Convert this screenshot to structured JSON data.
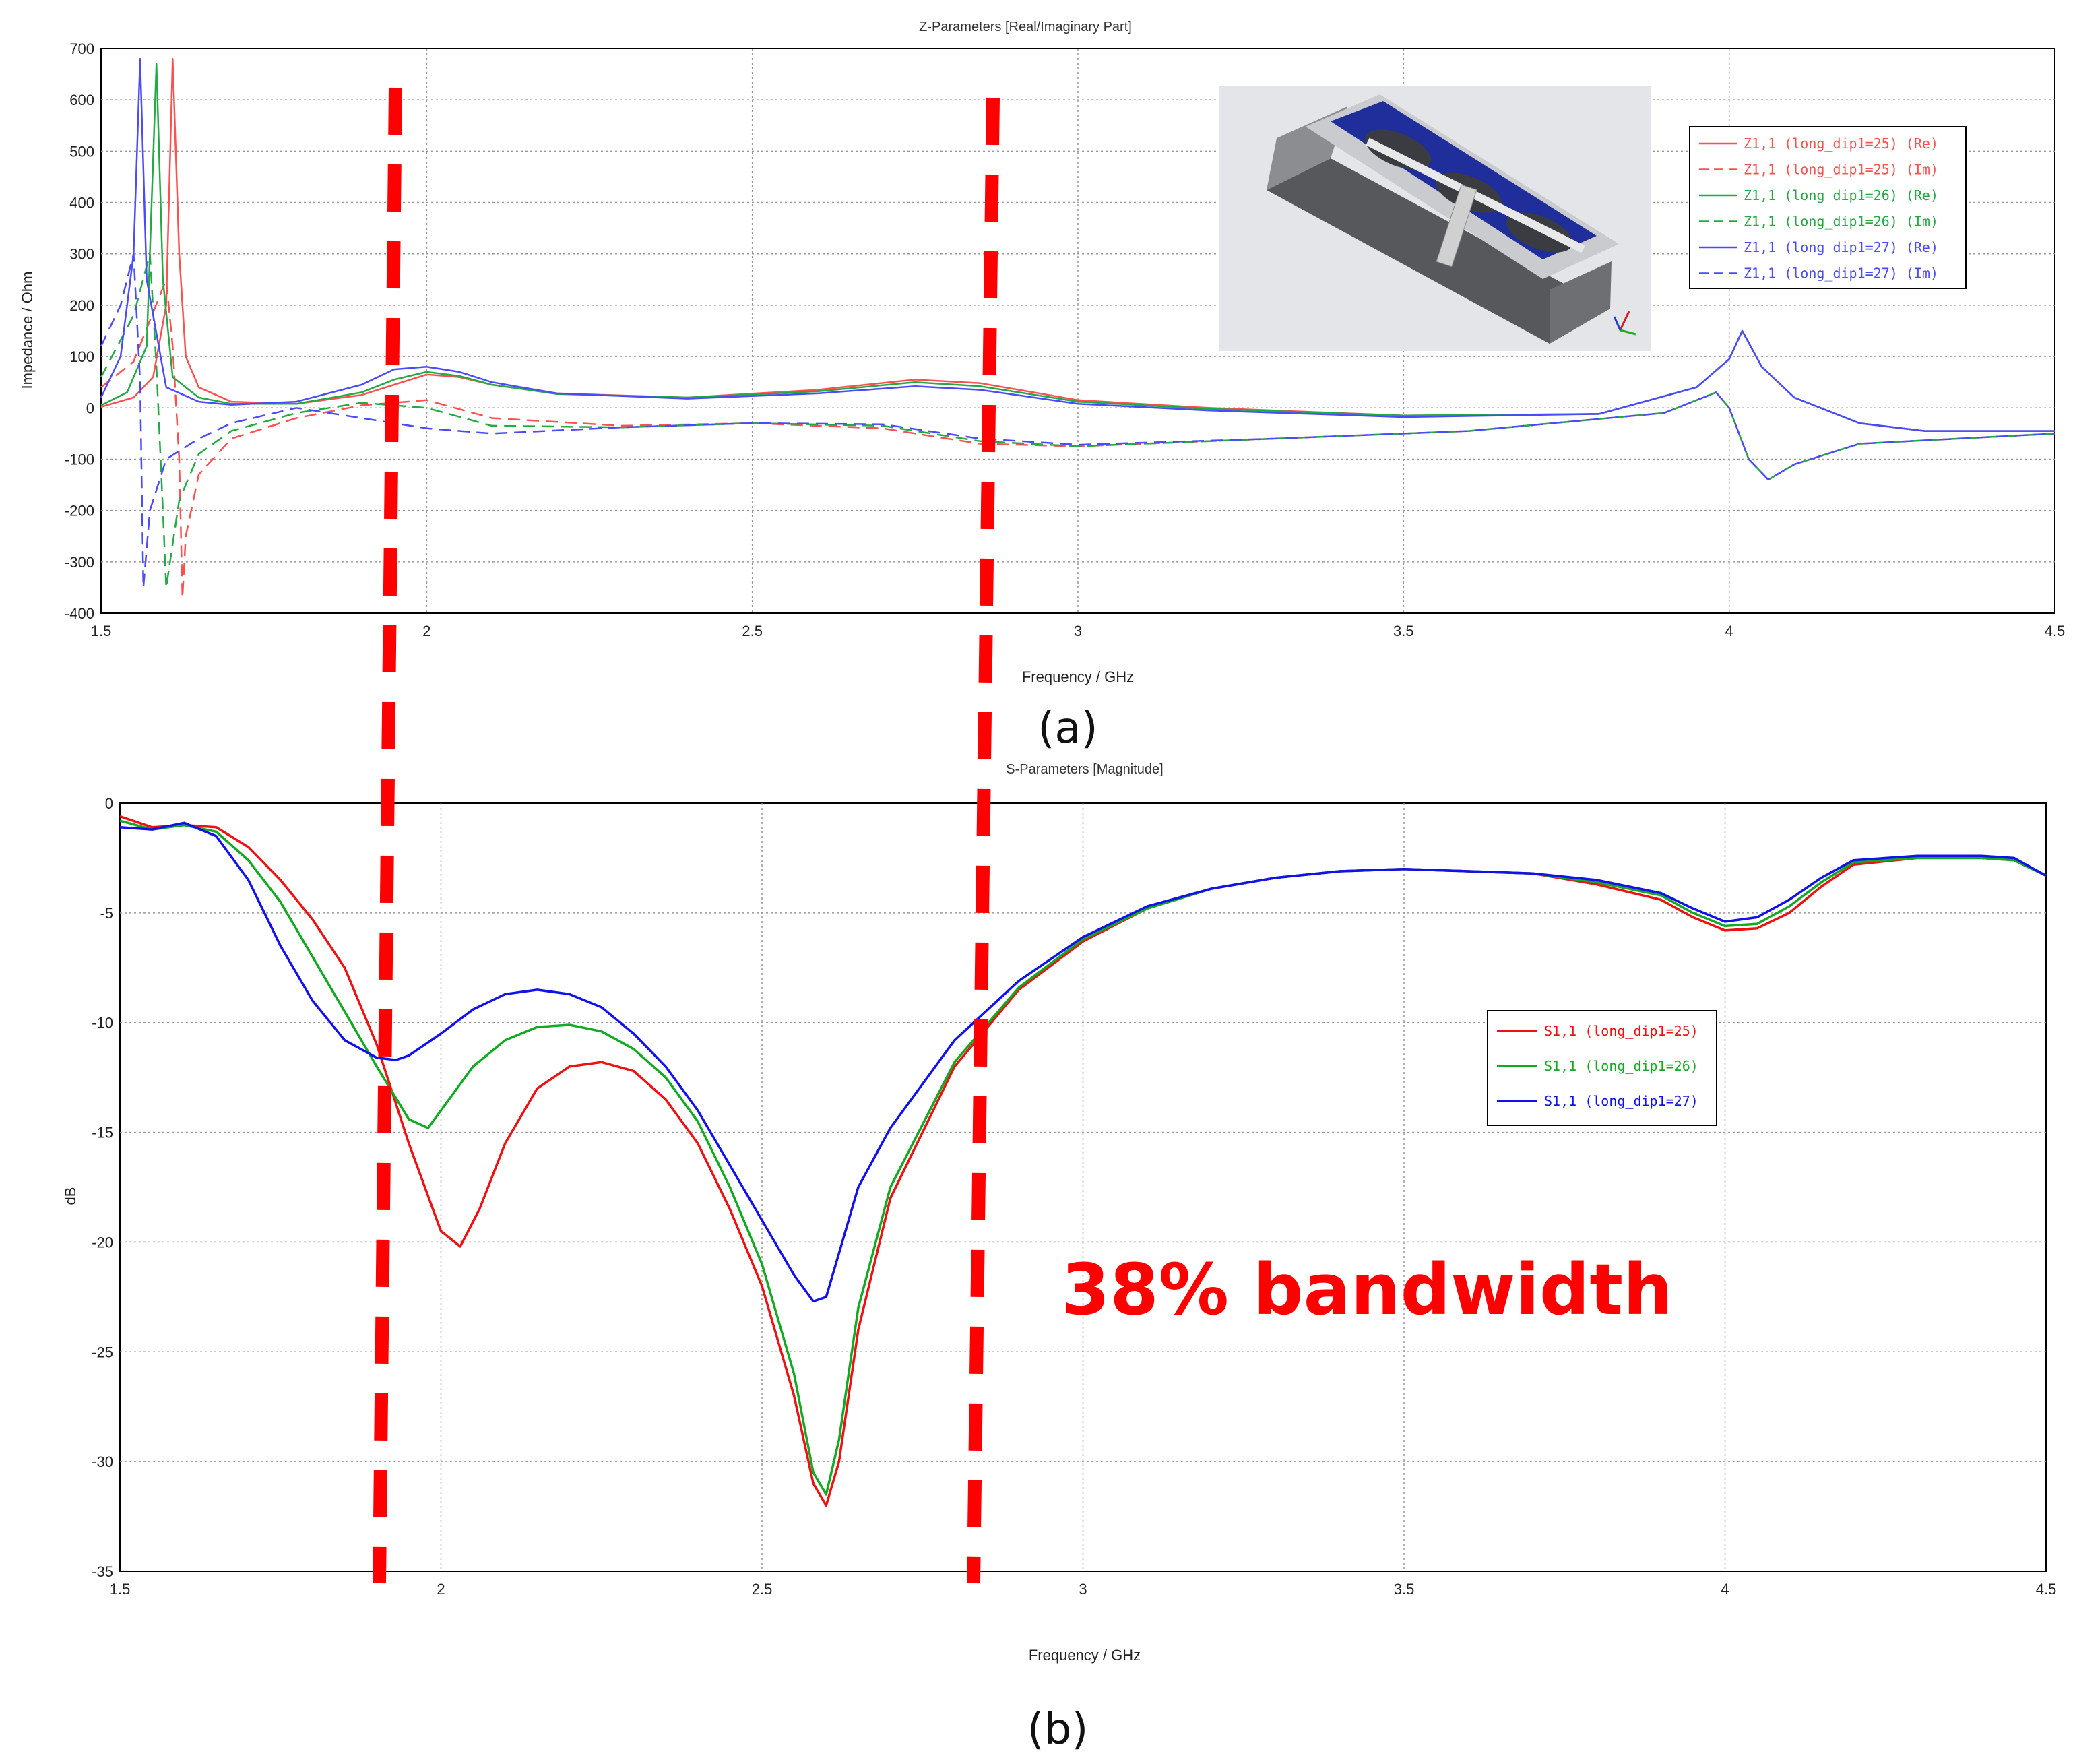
{
  "chart_data": [
    {
      "type": "line",
      "title": "Z-Parameters [Real/Imaginary Part]",
      "xlabel": "Frequency / GHz",
      "ylabel": "Impedance / Ohm",
      "xlim": [
        1.5,
        4.5
      ],
      "ylim": [
        -400,
        700
      ],
      "xticks": [
        "1.5",
        "2",
        "2.5",
        "3",
        "3.5",
        "4",
        "4.5"
      ],
      "yticks": [
        "700",
        "600",
        "500",
        "400",
        "300",
        "200",
        "100",
        "0",
        "-100",
        "-200",
        "-300",
        "-400"
      ],
      "grid": true,
      "legend_position": "top-right",
      "caption": "(a)",
      "inset": "3D antenna model",
      "series": [
        {
          "name": "Z1,1 (long_dip1=25) (Re)",
          "color": "#ff5050",
          "dash": "solid",
          "x": [
            1.5,
            1.55,
            1.58,
            1.6,
            1.61,
            1.62,
            1.63,
            1.65,
            1.7,
            1.8,
            1.9,
            1.95,
            2.0,
            2.05,
            2.1,
            2.2,
            2.4,
            2.6,
            2.75,
            2.85,
            3.0,
            3.2,
            3.5,
            3.8,
            3.95,
            4.0,
            4.02,
            4.05,
            4.1,
            4.2,
            4.3,
            4.5
          ],
          "y": [
            2,
            20,
            60,
            200,
            680,
            300,
            100,
            40,
            12,
            8,
            25,
            45,
            65,
            60,
            45,
            28,
            20,
            35,
            55,
            48,
            15,
            0,
            -15,
            -12,
            40,
            95,
            150,
            80,
            20,
            -30,
            -45,
            -45
          ]
        },
        {
          "name": "Z1,1 (long_dip1=25) (Im)",
          "color": "#ff5050",
          "dash": "dashed",
          "x": [
            1.5,
            1.55,
            1.6,
            1.61,
            1.62,
            1.625,
            1.63,
            1.65,
            1.7,
            1.8,
            1.9,
            2.0,
            2.1,
            2.3,
            2.5,
            2.7,
            2.85,
            3.0,
            3.3,
            3.6,
            3.9,
            3.98,
            4.0,
            4.03,
            4.06,
            4.1,
            4.2,
            4.5
          ],
          "y": [
            40,
            90,
            250,
            120,
            -100,
            -370,
            -250,
            -130,
            -60,
            -20,
            5,
            15,
            -20,
            -35,
            -30,
            -40,
            -70,
            -75,
            -60,
            -45,
            -10,
            30,
            0,
            -100,
            -140,
            -110,
            -70,
            -50
          ]
        },
        {
          "name": "Z1,1 (long_dip1=26) (Re)",
          "color": "#22aa44",
          "dash": "solid",
          "x": [
            1.5,
            1.54,
            1.57,
            1.585,
            1.595,
            1.61,
            1.65,
            1.7,
            1.8,
            1.9,
            1.95,
            2.0,
            2.05,
            2.1,
            2.2,
            2.4,
            2.6,
            2.75,
            2.85,
            3.0,
            3.2,
            3.5,
            3.8,
            3.95,
            4.0,
            4.02,
            4.05,
            4.1,
            4.2,
            4.3,
            4.5
          ],
          "y": [
            5,
            30,
            120,
            670,
            250,
            60,
            20,
            8,
            8,
            30,
            55,
            70,
            62,
            45,
            27,
            20,
            32,
            50,
            42,
            12,
            -2,
            -15,
            -12,
            40,
            95,
            150,
            80,
            20,
            -30,
            -45,
            -45
          ]
        },
        {
          "name": "Z1,1 (long_dip1=26) (Im)",
          "color": "#22aa44",
          "dash": "dashed",
          "x": [
            1.5,
            1.55,
            1.575,
            1.585,
            1.595,
            1.6,
            1.62,
            1.65,
            1.7,
            1.8,
            1.9,
            2.0,
            2.1,
            2.3,
            2.5,
            2.7,
            2.85,
            3.0,
            3.3,
            3.6,
            3.9,
            3.98,
            4.0,
            4.03,
            4.06,
            4.1,
            4.2,
            4.5
          ],
          "y": [
            60,
            180,
            300,
            80,
            -200,
            -350,
            -180,
            -90,
            -45,
            -10,
            10,
            0,
            -35,
            -38,
            -30,
            -35,
            -65,
            -75,
            -60,
            -45,
            -10,
            30,
            0,
            -100,
            -140,
            -110,
            -70,
            -50
          ]
        },
        {
          "name": "Z1,1 (long_dip1=27) (Re)",
          "color": "#4a4aff",
          "dash": "solid",
          "x": [
            1.5,
            1.53,
            1.55,
            1.56,
            1.57,
            1.6,
            1.65,
            1.7,
            1.8,
            1.9,
            1.95,
            2.0,
            2.05,
            2.1,
            2.2,
            2.4,
            2.6,
            2.75,
            2.85,
            3.0,
            3.2,
            3.5,
            3.8,
            3.95,
            4.0,
            4.02,
            4.05,
            4.1,
            4.2,
            4.3,
            4.5
          ],
          "y": [
            20,
            100,
            300,
            680,
            250,
            40,
            12,
            6,
            12,
            45,
            75,
            80,
            70,
            50,
            28,
            18,
            28,
            42,
            35,
            8,
            -5,
            -18,
            -12,
            40,
            95,
            150,
            80,
            20,
            -30,
            -45,
            -45
          ]
        },
        {
          "name": "Z1,1 (long_dip1=27) (Im)",
          "color": "#4a4aff",
          "dash": "dashed",
          "x": [
            1.5,
            1.53,
            1.55,
            1.56,
            1.565,
            1.575,
            1.6,
            1.65,
            1.7,
            1.8,
            1.9,
            2.0,
            2.1,
            2.3,
            2.5,
            2.7,
            2.85,
            3.0,
            3.3,
            3.6,
            3.9,
            3.98,
            4.0,
            4.03,
            4.06,
            4.1,
            4.2,
            4.5
          ],
          "y": [
            120,
            200,
            300,
            50,
            -350,
            -200,
            -100,
            -60,
            -30,
            0,
            -20,
            -40,
            -50,
            -38,
            -30,
            -32,
            -60,
            -72,
            -60,
            -45,
            -10,
            30,
            0,
            -100,
            -140,
            -110,
            -70,
            -50
          ]
        }
      ]
    },
    {
      "type": "line",
      "title": "S-Parameters [Magnitude]",
      "xlabel": "Frequency / GHz",
      "ylabel": "dB",
      "xlim": [
        1.5,
        4.5
      ],
      "ylim": [
        -35,
        0
      ],
      "xticks": [
        "1.5",
        "2",
        "2.5",
        "3",
        "3.5",
        "4",
        "4.5"
      ],
      "yticks": [
        "0",
        "-5",
        "-10",
        "-15",
        "-20",
        "-25",
        "-30",
        "-35"
      ],
      "grid": true,
      "legend_position": "center-right",
      "caption": "(b)",
      "annotation": "38% bandwidth",
      "band_markers_ghz": [
        1.92,
        2.85
      ],
      "series": [
        {
          "name": "S1,1 (long_dip1=25)",
          "color": "#ee1111",
          "x": [
            1.5,
            1.55,
            1.6,
            1.65,
            1.7,
            1.75,
            1.8,
            1.85,
            1.9,
            1.95,
            2.0,
            2.03,
            2.06,
            2.1,
            2.15,
            2.2,
            2.25,
            2.3,
            2.35,
            2.4,
            2.45,
            2.5,
            2.55,
            2.58,
            2.6,
            2.62,
            2.65,
            2.7,
            2.8,
            2.9,
            3.0,
            3.1,
            3.2,
            3.3,
            3.4,
            3.5,
            3.6,
            3.7,
            3.8,
            3.9,
            3.95,
            4.0,
            4.05,
            4.1,
            4.15,
            4.2,
            4.3,
            4.4,
            4.45,
            4.5
          ],
          "y": [
            -0.6,
            -1.1,
            -1.0,
            -1.1,
            -2.0,
            -3.5,
            -5.3,
            -7.5,
            -11.0,
            -15.5,
            -19.5,
            -20.2,
            -18.5,
            -15.5,
            -13.0,
            -12.0,
            -11.8,
            -12.2,
            -13.5,
            -15.5,
            -18.5,
            -22.0,
            -27.0,
            -31.0,
            -32.0,
            -30.0,
            -24.0,
            -18.0,
            -12.0,
            -8.5,
            -6.3,
            -4.8,
            -3.9,
            -3.4,
            -3.1,
            -3.0,
            -3.1,
            -3.2,
            -3.7,
            -4.4,
            -5.2,
            -5.8,
            -5.7,
            -5.0,
            -3.8,
            -2.8,
            -2.5,
            -2.5,
            -2.6,
            -3.3
          ]
        },
        {
          "name": "S1,1 (long_dip1=26)",
          "color": "#11aa22",
          "x": [
            1.5,
            1.55,
            1.6,
            1.65,
            1.7,
            1.75,
            1.8,
            1.85,
            1.9,
            1.95,
            1.98,
            2.0,
            2.05,
            2.1,
            2.15,
            2.2,
            2.25,
            2.3,
            2.35,
            2.4,
            2.45,
            2.5,
            2.55,
            2.58,
            2.6,
            2.62,
            2.65,
            2.7,
            2.8,
            2.9,
            3.0,
            3.1,
            3.2,
            3.3,
            3.4,
            3.5,
            3.6,
            3.7,
            3.8,
            3.9,
            3.95,
            4.0,
            4.05,
            4.1,
            4.15,
            4.2,
            4.3,
            4.4,
            4.45,
            4.5
          ],
          "y": [
            -0.8,
            -1.2,
            -1.0,
            -1.3,
            -2.6,
            -4.5,
            -7.0,
            -9.5,
            -12.0,
            -14.4,
            -14.8,
            -14.0,
            -12.0,
            -10.8,
            -10.2,
            -10.1,
            -10.4,
            -11.2,
            -12.5,
            -14.5,
            -17.5,
            -21.0,
            -26.0,
            -30.5,
            -31.5,
            -29.0,
            -23.0,
            -17.5,
            -11.8,
            -8.4,
            -6.2,
            -4.8,
            -3.9,
            -3.4,
            -3.1,
            -3.0,
            -3.1,
            -3.2,
            -3.6,
            -4.2,
            -5.0,
            -5.6,
            -5.5,
            -4.7,
            -3.6,
            -2.7,
            -2.5,
            -2.5,
            -2.6,
            -3.3
          ]
        },
        {
          "name": "S1,1 (long_dip1=27)",
          "color": "#1111ee",
          "x": [
            1.5,
            1.55,
            1.6,
            1.65,
            1.7,
            1.75,
            1.8,
            1.85,
            1.9,
            1.93,
            1.95,
            2.0,
            2.05,
            2.1,
            2.15,
            2.2,
            2.25,
            2.3,
            2.35,
            2.4,
            2.45,
            2.5,
            2.55,
            2.58,
            2.6,
            2.62,
            2.65,
            2.7,
            2.8,
            2.9,
            3.0,
            3.1,
            3.2,
            3.3,
            3.4,
            3.5,
            3.6,
            3.7,
            3.8,
            3.9,
            3.95,
            4.0,
            4.05,
            4.1,
            4.15,
            4.2,
            4.3,
            4.4,
            4.45,
            4.5
          ],
          "y": [
            -1.1,
            -1.2,
            -0.9,
            -1.5,
            -3.5,
            -6.5,
            -9.0,
            -10.8,
            -11.6,
            -11.7,
            -11.5,
            -10.5,
            -9.4,
            -8.7,
            -8.5,
            -8.7,
            -9.3,
            -10.5,
            -12.0,
            -14.0,
            -16.5,
            -19.0,
            -21.5,
            -22.7,
            -22.5,
            -20.5,
            -17.5,
            -14.8,
            -10.8,
            -8.1,
            -6.1,
            -4.7,
            -3.9,
            -3.4,
            -3.1,
            -3.0,
            -3.1,
            -3.2,
            -3.5,
            -4.1,
            -4.8,
            -5.4,
            -5.2,
            -4.4,
            -3.4,
            -2.6,
            -2.4,
            -2.4,
            -2.5,
            -3.3
          ]
        }
      ]
    }
  ]
}
